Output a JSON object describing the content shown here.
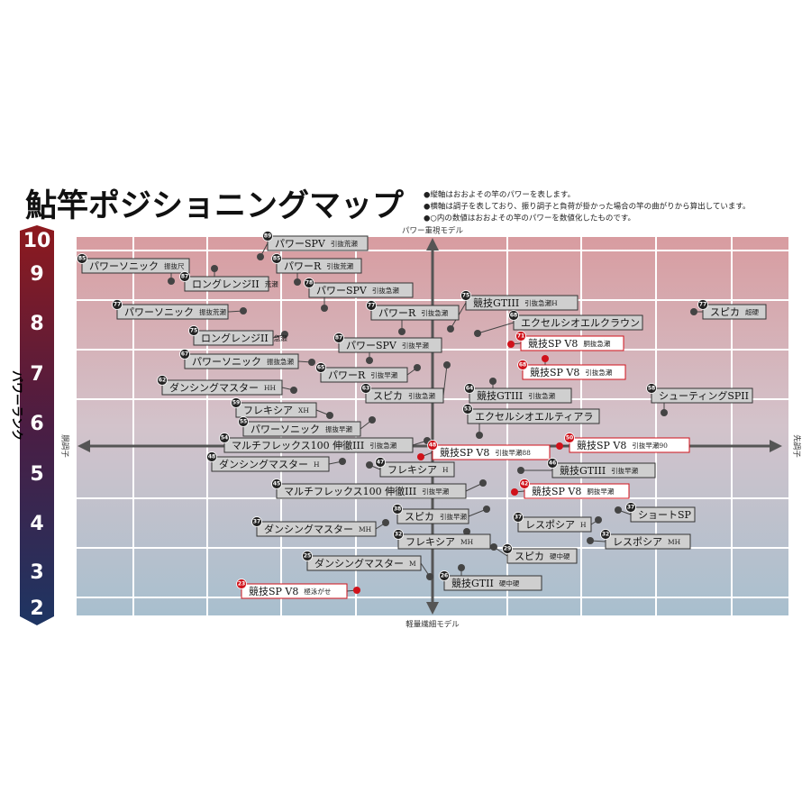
{
  "header": {
    "title": "鮎竿ポジショニングマップ",
    "notes": [
      "●縦軸はおおよその竿のパワーを表します。",
      "●横軸は調子を表しており、振り調子と負荷が掛かった場合の竿の曲がりから算出しています。",
      "●○内の数値はおおよその竿のパワーを数値化したものです。"
    ]
  },
  "axes": {
    "top": "パワー重視モデル",
    "bottom": "軽量繊細モデル",
    "left": "胴調子",
    "right": "先調子",
    "rank_title": "パワーランク",
    "ranks": [
      "10",
      "9",
      "8",
      "7",
      "6",
      "5",
      "4",
      "3",
      "2"
    ]
  },
  "items": [
    {
      "power": "89",
      "name": "パワーSPV",
      "detail": "引抜荒瀬"
    },
    {
      "power": "85",
      "name": "パワーソニック",
      "detail": "振抜尺"
    },
    {
      "power": "85",
      "name": "パワーR",
      "detail": "引抜荒瀬"
    },
    {
      "power": "87",
      "name": "ロングレンジII",
      "detail": "荒瀬"
    },
    {
      "power": "78",
      "name": "パワーSPV",
      "detail": "引抜急瀬"
    },
    {
      "power": "77",
      "name": "パワーソニック",
      "detail": "振抜荒瀬"
    },
    {
      "power": "77",
      "name": "パワーR",
      "detail": "引抜急瀬"
    },
    {
      "power": "75",
      "name": "競技GTIII",
      "detail": "引抜急瀬H"
    },
    {
      "power": "77",
      "name": "スピカ",
      "detail": "超硬"
    },
    {
      "power": "68",
      "name": "エクセルシオエルクラウン",
      "detail": ""
    },
    {
      "power": "75",
      "name": "ロングレンジII",
      "detail": "急瀬"
    },
    {
      "power": "87",
      "name": "パワーSPV",
      "detail": "引抜早瀬"
    },
    {
      "power": "71",
      "name": "競技SP V8",
      "detail": "胴抜急瀬"
    },
    {
      "power": "67",
      "name": "パワーソニック",
      "detail": "振抜急瀬"
    },
    {
      "power": "65",
      "name": "パワーR",
      "detail": "引抜早瀬"
    },
    {
      "power": "68",
      "name": "競技SP V8",
      "detail": "引抜急瀬"
    },
    {
      "power": "62",
      "name": "ダンシングマスター",
      "detail": "HH"
    },
    {
      "power": "63",
      "name": "スピカ",
      "detail": "引抜急瀬"
    },
    {
      "power": "64",
      "name": "競技GTIII",
      "detail": "引抜急瀬"
    },
    {
      "power": "58",
      "name": "シューティングSPII",
      "detail": ""
    },
    {
      "power": "59",
      "name": "フレキシア",
      "detail": "XH"
    },
    {
      "power": "53",
      "name": "エクセルシオエルティアラ",
      "detail": ""
    },
    {
      "power": "55",
      "name": "パワーソニック",
      "detail": "振抜早瀬"
    },
    {
      "power": "54",
      "name": "マルチフレックス100 伸徹III",
      "detail": "引抜急瀬"
    },
    {
      "power": "48",
      "name": "競技SP V8",
      "detail": "引抜早瀬88"
    },
    {
      "power": "50",
      "name": "競技SP V8",
      "detail": "引抜早瀬90"
    },
    {
      "power": "48",
      "name": "ダンシングマスター",
      "detail": "H"
    },
    {
      "power": "47",
      "name": "フレキシア",
      "detail": "H"
    },
    {
      "power": "46",
      "name": "競技GTIII",
      "detail": "引抜早瀬"
    },
    {
      "power": "45",
      "name": "マルチフレックス100 伸徹III",
      "detail": "引抜早瀬"
    },
    {
      "power": "42",
      "name": "競技SP V8",
      "detail": "胴抜早瀬"
    },
    {
      "power": "38",
      "name": "スピカ",
      "detail": "引抜早瀬"
    },
    {
      "power": "37",
      "name": "ショートSP",
      "detail": ""
    },
    {
      "power": "37",
      "name": "ダンシングマスター",
      "detail": "MH"
    },
    {
      "power": "37",
      "name": "レスポシア",
      "detail": "H"
    },
    {
      "power": "32",
      "name": "フレキシア",
      "detail": "MH"
    },
    {
      "power": "32",
      "name": "レスポシア",
      "detail": "MH"
    },
    {
      "power": "29",
      "name": "スピカ",
      "detail": "硬中硬"
    },
    {
      "power": "25",
      "name": "ダンシングマスター",
      "detail": "M"
    },
    {
      "power": "26",
      "name": "競技GTII",
      "detail": "硬中硬"
    },
    {
      "power": "23",
      "name": "競技SP V8",
      "detail": "極泳がせ"
    }
  ]
}
